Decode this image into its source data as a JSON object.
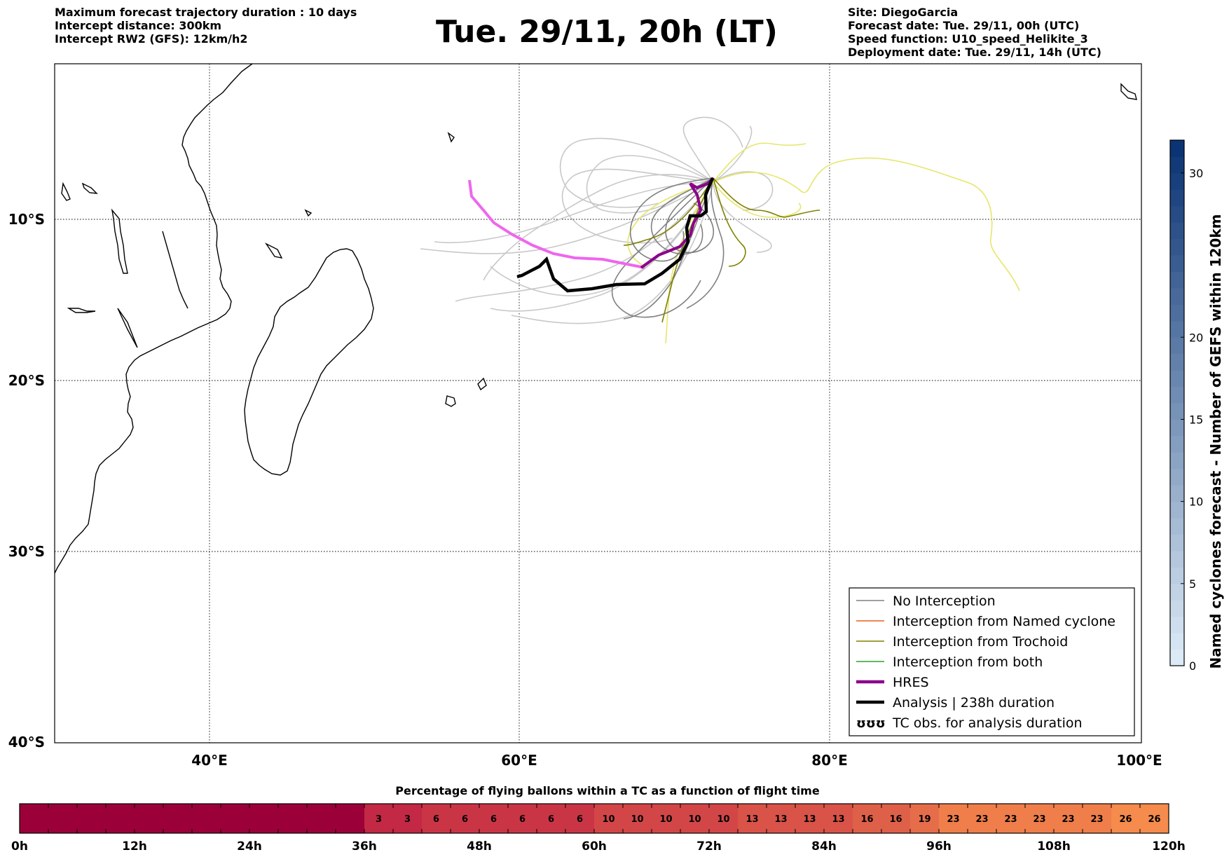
{
  "header": {
    "left_lines": [
      "Maximum forecast trajectory duration : 10 days",
      "Intercept distance: 300km",
      "Intercept RW2 (GFS):  12km/h2"
    ],
    "title": "Tue. 29/11, 20h (LT)",
    "right_lines": [
      "Site: DiegoGarcia",
      "Forecast date: Tue. 29/11, 00h (UTC)",
      "Speed function: U10_speed_Helikite_3",
      "Deployment date: Tue. 29/11, 14h (UTC)"
    ]
  },
  "map": {
    "lat_labels": [
      "10°S",
      "20°S",
      "30°S",
      "40°S"
    ],
    "lon_labels": [
      "40°E",
      "60°E",
      "80°E",
      "100°E"
    ],
    "lon_range": [
      30,
      100
    ],
    "lat_range": [
      -40,
      -0.5
    ],
    "colors": {
      "no_interception": "#808080",
      "named_cyclone": "#e8601c",
      "trochoid": "#808000",
      "both": "#2ca02c",
      "hres": "#8b008b",
      "analysis": "#000000",
      "ensemble_light": "#c8c8c8",
      "ensemble_yellow": "#e6e66a",
      "first_guess": "#ee66ee"
    }
  },
  "legend": {
    "items": [
      {
        "key": "no_interception",
        "label": "No Interception",
        "style": "thin"
      },
      {
        "key": "named_cyclone",
        "label": "Interception from Named cyclone",
        "style": "thin"
      },
      {
        "key": "trochoid",
        "label": "Interception from Trochoid",
        "style": "thin"
      },
      {
        "key": "both",
        "label": "Interception from both",
        "style": "thin"
      },
      {
        "key": "hres",
        "label": "HRES",
        "style": "thick"
      },
      {
        "key": "analysis",
        "label": "Analysis | 238h duration",
        "style": "thick"
      },
      {
        "key": "tc_obs",
        "label": "TC obs. for analysis duration",
        "symbol": "ggg"
      }
    ]
  },
  "colorbar_right": {
    "label": "Named cyclones forecast - Number of GEFS within 120km",
    "ticks": [
      "0",
      "5",
      "10",
      "15",
      "20",
      "30"
    ],
    "tick_values": [
      0,
      5,
      10,
      15,
      20,
      30
    ],
    "max": 32,
    "color_low": "#dceaf6",
    "color_high": "#0b3474"
  },
  "colorbar_bottom": {
    "title": "Percentage of flying ballons within a TC as a function of flight time",
    "cells": [
      "",
      "",
      "",
      "",
      "",
      "",
      "",
      "",
      "",
      "",
      "",
      "",
      "3",
      "3",
      "6",
      "6",
      "6",
      "6",
      "6",
      "6",
      "10",
      "10",
      "10",
      "10",
      "10",
      "13",
      "13",
      "13",
      "13",
      "16",
      "16",
      "19",
      "23",
      "23",
      "23",
      "23",
      "23",
      "23",
      "26",
      "26"
    ],
    "tick_labels": [
      "0h",
      "12h",
      "24h",
      "36h",
      "48h",
      "60h",
      "72h",
      "84h",
      "96h",
      "108h",
      "120h"
    ]
  }
}
